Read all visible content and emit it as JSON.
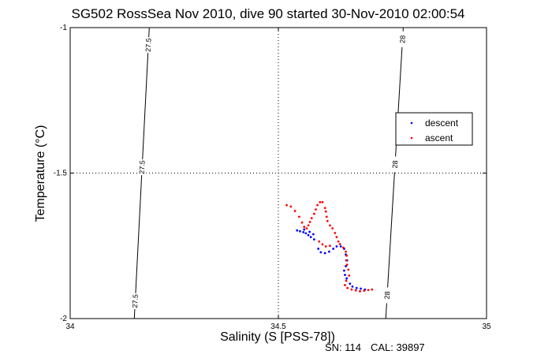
{
  "chart_data": {
    "type": "scatter",
    "title": "SG502 RossSea Nov 2010, dive 90 started 30-Nov-2010 02:00:54",
    "xlabel": "Salinity (S [PSS-78])",
    "ylabel": "Temperature (°C)",
    "xlim": [
      34,
      35
    ],
    "ylim": [
      -2,
      -1
    ],
    "x_ticks": [
      "34",
      "34.5",
      "35"
    ],
    "y_ticks": [
      "-1",
      "-1.5",
      "-2"
    ],
    "grid": "dotted, at x=34.5 and y=-1.5",
    "legend_position": "right",
    "legend": [
      {
        "name": "descent",
        "color": "#0000ff"
      },
      {
        "name": "ascent",
        "color": "#ff0000"
      }
    ],
    "contours": [
      {
        "label": "27.5",
        "points": [
          [
            34.154,
            -2.0
          ],
          [
            34.19,
            -1.0
          ]
        ],
        "label_y": [
          -1.06,
          -1.48,
          -1.94
        ]
      },
      {
        "label": "28",
        "points": [
          [
            34.758,
            -2.0
          ],
          [
            34.8,
            -1.0
          ]
        ],
        "label_y": [
          -1.04,
          -1.47,
          -1.92
        ]
      }
    ],
    "series": [
      {
        "name": "descent",
        "color": "#0000ff",
        "points": [
          [
            34.545,
            -1.697
          ],
          [
            34.552,
            -1.7
          ],
          [
            34.56,
            -1.703
          ],
          [
            34.566,
            -1.707
          ],
          [
            34.572,
            -1.713
          ],
          [
            34.578,
            -1.72
          ],
          [
            34.584,
            -1.71
          ],
          [
            34.575,
            -1.702
          ],
          [
            34.562,
            -1.694
          ],
          [
            34.586,
            -1.728
          ],
          [
            34.596,
            -1.76
          ],
          [
            34.602,
            -1.772
          ],
          [
            34.612,
            -1.775
          ],
          [
            34.622,
            -1.77
          ],
          [
            34.632,
            -1.76
          ],
          [
            34.64,
            -1.752
          ],
          [
            34.65,
            -1.752
          ],
          [
            34.658,
            -1.76
          ],
          [
            34.662,
            -1.78
          ],
          [
            34.665,
            -1.8
          ],
          [
            34.662,
            -1.82
          ],
          [
            34.658,
            -1.835
          ],
          [
            34.66,
            -1.85
          ],
          [
            34.664,
            -1.862
          ],
          [
            34.672,
            -1.88
          ],
          [
            34.678,
            -1.89
          ],
          [
            34.688,
            -1.895
          ],
          [
            34.698,
            -1.897
          ],
          [
            34.708,
            -1.9
          ]
        ]
      },
      {
        "name": "ascent",
        "color": "#ff0000",
        "points": [
          [
            34.725,
            -1.9
          ],
          [
            34.716,
            -1.902
          ],
          [
            34.706,
            -1.904
          ],
          [
            34.696,
            -1.906
          ],
          [
            34.686,
            -1.903
          ],
          [
            34.676,
            -1.9
          ],
          [
            34.666,
            -1.895
          ],
          [
            34.66,
            -1.885
          ],
          [
            34.663,
            -1.87
          ],
          [
            34.67,
            -1.852
          ],
          [
            34.668,
            -1.832
          ],
          [
            34.665,
            -1.815
          ],
          [
            34.663,
            -1.8
          ],
          [
            34.664,
            -1.784
          ],
          [
            34.662,
            -1.77
          ],
          [
            34.656,
            -1.756
          ],
          [
            34.648,
            -1.744
          ],
          [
            34.644,
            -1.735
          ],
          [
            34.64,
            -1.72
          ],
          [
            34.636,
            -1.706
          ],
          [
            34.63,
            -1.69
          ],
          [
            34.624,
            -1.68
          ],
          [
            34.618,
            -1.665
          ],
          [
            34.616,
            -1.65
          ],
          [
            34.614,
            -1.632
          ],
          [
            34.612,
            -1.62
          ],
          [
            34.606,
            -1.6
          ],
          [
            34.6,
            -1.6
          ],
          [
            34.594,
            -1.61
          ],
          [
            34.59,
            -1.625
          ],
          [
            34.586,
            -1.64
          ],
          [
            34.58,
            -1.655
          ],
          [
            34.576,
            -1.668
          ],
          [
            34.572,
            -1.68
          ],
          [
            34.568,
            -1.69
          ],
          [
            34.562,
            -1.685
          ],
          [
            34.557,
            -1.67
          ],
          [
            34.55,
            -1.65
          ],
          [
            34.54,
            -1.63
          ],
          [
            34.53,
            -1.615
          ],
          [
            34.52,
            -1.61
          ],
          [
            34.598,
            -1.735
          ],
          [
            34.606,
            -1.745
          ],
          [
            34.614,
            -1.752
          ],
          [
            34.624,
            -1.75
          ]
        ]
      }
    ]
  },
  "footer": {
    "serial": "SN: 114",
    "cal": "CAL: 39897"
  }
}
